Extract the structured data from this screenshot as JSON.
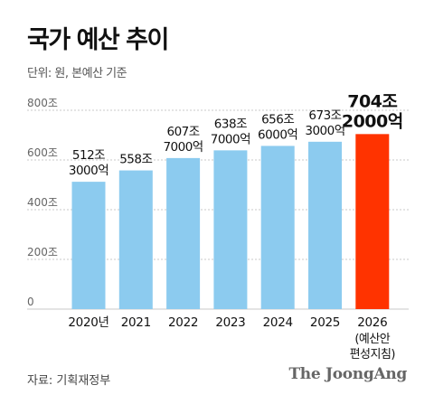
{
  "title": "국가 예산 추이",
  "unit": "단위: 원, 본예산 기준",
  "source": "자료: 기획재정부",
  "brand": "The JoongAng",
  "colors": {
    "bar": "#8ccbef",
    "highlight": "#ff3300",
    "grid": "#c8c8c8",
    "text": "#111111",
    "axis_text": "#666666"
  },
  "chart_data": {
    "type": "bar",
    "categories": [
      "2020년",
      "2021",
      "2022",
      "2023",
      "2024",
      "2025",
      "2026"
    ],
    "category_sub": [
      "",
      "",
      "",
      "",
      "",
      "",
      "(예산안\n편성지침)"
    ],
    "values": [
      512.3,
      558,
      607.7,
      638.7,
      656.6,
      673.3,
      704.2
    ],
    "value_labels": [
      "512조\n3000억",
      "558조",
      "607조\n7000억",
      "638조\n7000억",
      "656조\n6000억",
      "673조\n3000억",
      "704조\n2000억"
    ],
    "highlight_index": 6,
    "y_ticks": [
      "0",
      "200조",
      "400조",
      "600조",
      "800조"
    ],
    "y_tick_values": [
      0,
      200,
      400,
      600,
      800
    ],
    "ylim": [
      0,
      800
    ],
    "grid": true,
    "ylabel": "",
    "xlabel": ""
  }
}
